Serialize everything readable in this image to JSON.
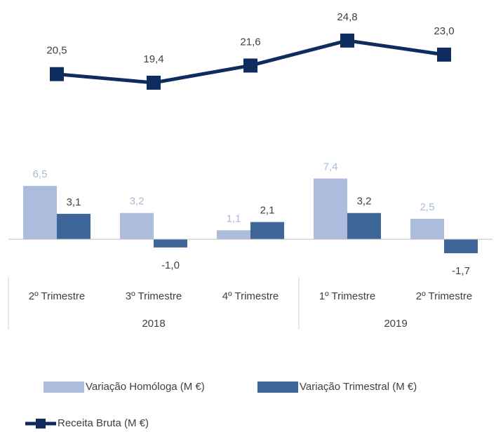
{
  "chart_data": {
    "type": "bar",
    "categories": [
      "2º Trimestre",
      "3º Trimestre",
      "4º Trimestre",
      "1º Trimestre",
      "2º Trimestre"
    ],
    "x_groups": [
      {
        "label": "2018",
        "count": 3
      },
      {
        "label": "2019",
        "count": 2
      }
    ],
    "series": [
      {
        "name": "Variação Homóloga (M €)",
        "color": "#adbcdd",
        "label_color": "#a9b9d9",
        "values": [
          6.5,
          3.2,
          1.1,
          7.4,
          2.5
        ],
        "value_labels": [
          "6,5",
          "3,2",
          "1,1",
          "7,4",
          "2,5"
        ]
      },
      {
        "name": "Variação Trimestral (M €)",
        "color": "#3d6598",
        "label_color": "#404040",
        "values": [
          3.1,
          -1.0,
          2.1,
          3.2,
          -1.7
        ],
        "value_labels": [
          "3,1",
          "-1,0",
          "2,1",
          "3,2",
          "-1,7"
        ]
      },
      {
        "name": "Receita Bruta (M €)",
        "type": "line",
        "axis": "y2",
        "color": "#0e2d5e",
        "label_color": "#404040",
        "values": [
          20.5,
          19.4,
          21.6,
          24.8,
          23.0
        ],
        "value_labels": [
          "20,5",
          "19,4",
          "21,6",
          "24,8",
          "23,0"
        ]
      }
    ],
    "ylim": [
      -4.6,
      28.3
    ],
    "y2lim": [
      -5.5,
      29.1
    ],
    "grid": false
  }
}
